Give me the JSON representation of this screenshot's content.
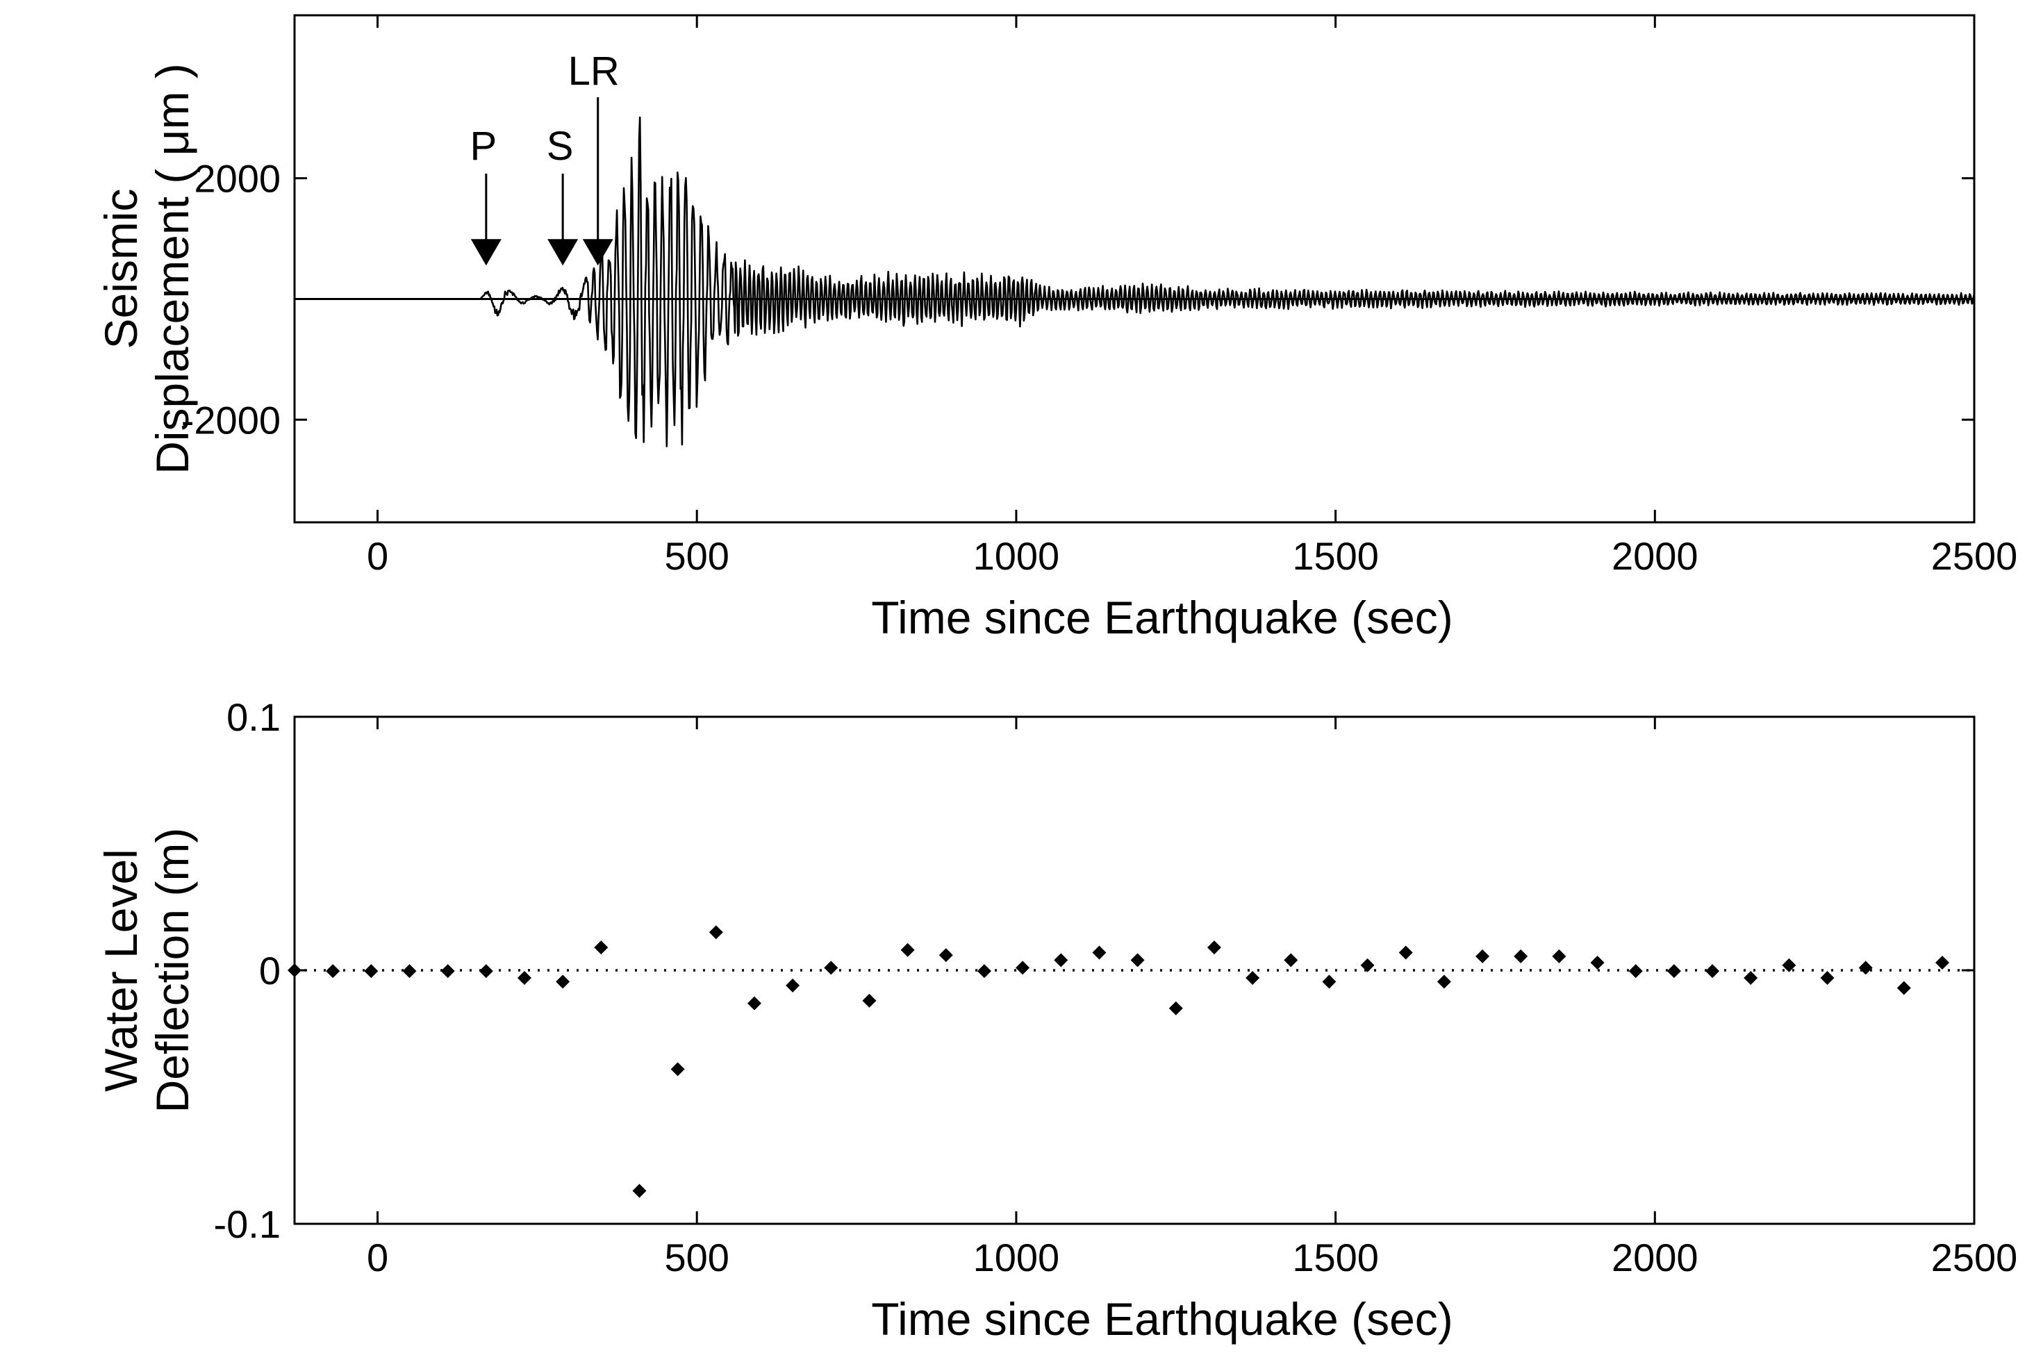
{
  "chart_data": [
    {
      "type": "line",
      "xlabel": "Time since Earthquake (sec)",
      "ylabel_lines": [
        "Seismic",
        "Displacement ( μm )"
      ],
      "xlim": [
        -130,
        2500
      ],
      "ylim": [
        -3700,
        4700
      ],
      "xticks": [
        0,
        500,
        1000,
        1500,
        2000,
        2500
      ],
      "yticks": [
        -2000,
        2000
      ],
      "baseline": 0,
      "grid": false,
      "series": [
        {
          "x": [
            160,
            180,
            200,
            220,
            240,
            260,
            280,
            300,
            320,
            335,
            350,
            365,
            380,
            395,
            410,
            425,
            440,
            455,
            470,
            485,
            500,
            520,
            540,
            560,
            580,
            600,
            640,
            680,
            720,
            760,
            800,
            850,
            900,
            950,
            1000,
            1050,
            1100,
            1150,
            1200,
            1250,
            1300,
            1400,
            1500,
            1600,
            1700,
            1800,
            1900,
            2000,
            2100,
            2200,
            2300,
            2400,
            2500
          ],
          "envelope": [
            0,
            300,
            250,
            100,
            60,
            50,
            150,
            300,
            400,
            550,
            900,
            1200,
            1800,
            2600,
            3100,
            2500,
            2100,
            2600,
            2700,
            2300,
            2000,
            1200,
            900,
            800,
            750,
            700,
            600,
            480,
            420,
            380,
            500,
            450,
            480,
            420,
            500,
            220,
            200,
            230,
            280,
            260,
            170,
            180,
            170,
            160,
            150,
            140,
            130,
            120,
            115,
            110,
            105,
            100,
            100
          ]
        }
      ],
      "annotations": [
        {
          "label": "P",
          "x": 170
        },
        {
          "label": "S",
          "x": 290
        },
        {
          "label": "LR",
          "x": 345
        }
      ]
    },
    {
      "type": "scatter",
      "xlabel": "Time since Earthquake (sec)",
      "ylabel_lines": [
        "Water Level",
        "Deflection (m)"
      ],
      "xlim": [
        -130,
        2500
      ],
      "ylim": [
        -0.1,
        0.1
      ],
      "xticks": [
        0,
        500,
        1000,
        1500,
        2000,
        2500
      ],
      "yticks": [
        -0.1,
        0,
        0.1
      ],
      "yticklabels": [
        "-0.1",
        "0",
        "0.1"
      ],
      "baseline": 0,
      "grid": false,
      "series": [
        {
          "x": [
            -130,
            -70,
            -10,
            50,
            110,
            170,
            230,
            290,
            350,
            410,
            470,
            530,
            590,
            650,
            710,
            770,
            830,
            890,
            950,
            1010,
            1070,
            1130,
            1190,
            1250,
            1310,
            1370,
            1430,
            1490,
            1550,
            1610,
            1670,
            1730,
            1790,
            1850,
            1910,
            1970,
            2030,
            2090,
            2150,
            2210,
            2270,
            2330,
            2390,
            2450
          ],
          "y": [
            0,
            -0.0003,
            -0.0003,
            -0.0003,
            -0.0003,
            -0.0003,
            -0.003,
            -0.0045,
            0.009,
            -0.087,
            -0.039,
            0.015,
            -0.013,
            -0.006,
            0.001,
            -0.012,
            0.008,
            0.006,
            -0.0003,
            0.001,
            0.004,
            0.007,
            0.004,
            -0.015,
            0.009,
            -0.003,
            0.004,
            -0.0045,
            0.002,
            0.007,
            -0.0045,
            0.0055,
            0.0055,
            0.0055,
            0.003,
            -0.0003,
            -0.0003,
            -0.0003,
            -0.003,
            0.002,
            -0.003,
            0.001,
            -0.007,
            0.003
          ]
        }
      ]
    }
  ]
}
